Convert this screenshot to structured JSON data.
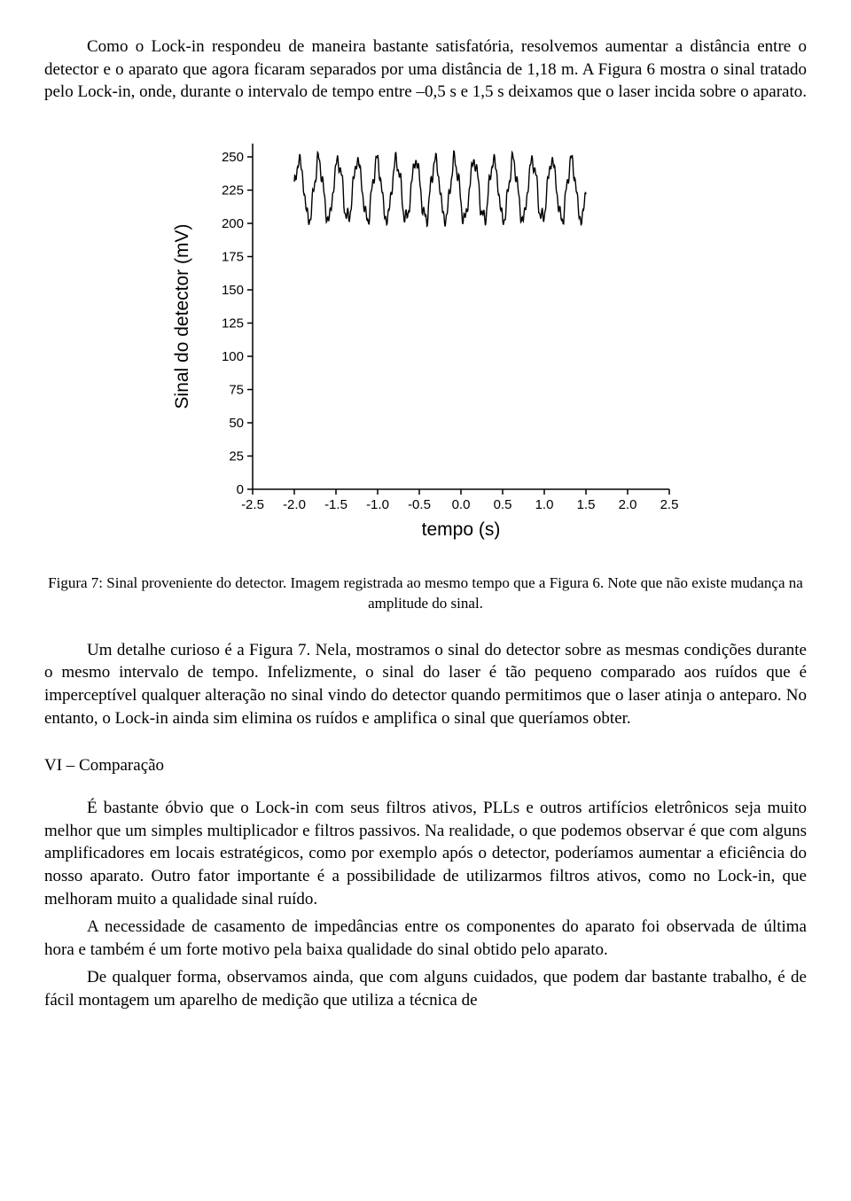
{
  "para1": "Como o Lock-in respondeu de maneira bastante satisfatória, resolvemos aumentar a distância entre o detector e o aparato que agora ficaram separados por uma distância de 1,18 m. A Figura 6 mostra o sinal tratado pelo Lock-in, onde, durante o intervalo de tempo entre –0,5 s e 1,5 s deixamos que o laser incida sobre o aparato.",
  "chart": {
    "type": "line",
    "ylabel": "Sinal do detector (mV)",
    "xlabel": "tempo (s)",
    "yticks": [
      0,
      25,
      50,
      75,
      100,
      125,
      150,
      175,
      200,
      225,
      250
    ],
    "xticks": [
      "-2.5",
      "-2.0",
      "-1.5",
      "-1.0",
      "-0.5",
      "0.0",
      "0.5",
      "1.0",
      "1.5",
      "2.0",
      "2.5"
    ],
    "ylim": [
      0,
      260
    ],
    "xlim": [
      -2.5,
      2.5
    ],
    "signal_xrange": [
      -2.0,
      1.5
    ],
    "signal_center": 225,
    "signal_amplitude": 22,
    "signal_cycles": 15,
    "line_color": "#000000",
    "line_width": 1.4,
    "axis_color": "#000000",
    "axis_width": 1.5,
    "tick_font_size": 15,
    "label_font_size": 21,
    "label_font_family": "Arial, Helvetica, sans-serif",
    "background_color": "#ffffff"
  },
  "caption": "Figura 7: Sinal proveniente do detector. Imagem registrada ao mesmo tempo que a Figura 6. Note que não existe mudança na amplitude do sinal.",
  "para2": "Um detalhe curioso é a Figura 7. Nela, mostramos o sinal do detector sobre as mesmas condições durante o mesmo intervalo de tempo. Infelizmente, o sinal do laser é tão pequeno comparado aos ruídos que é imperceptível qualquer alteração no sinal vindo do detector quando permitimos que o laser atinja o anteparo. No entanto, o Lock-in ainda sim elimina os ruídos e amplifica o sinal que queríamos obter.",
  "section_head": "VI – Comparação",
  "para3": "É bastante óbvio que o Lock-in com seus filtros ativos, PLLs e outros artifícios eletrônicos seja muito melhor que um simples multiplicador e filtros passivos. Na realidade, o que podemos observar é que com alguns amplificadores em locais estratégicos, como por exemplo após o detector, poderíamos aumentar a eficiência do nosso aparato. Outro fator importante é a possibilidade de utilizarmos filtros ativos, como no Lock-in, que melhoram muito a qualidade sinal ruído.",
  "para4": "A necessidade de casamento de impedâncias entre os componentes do aparato foi observada de última hora e também é um forte motivo pela baixa qualidade do sinal obtido pelo aparato.",
  "para5": "De qualquer forma, observamos ainda, que com alguns cuidados, que podem dar bastante trabalho, é de fácil montagem um aparelho de medição que utiliza a técnica de"
}
